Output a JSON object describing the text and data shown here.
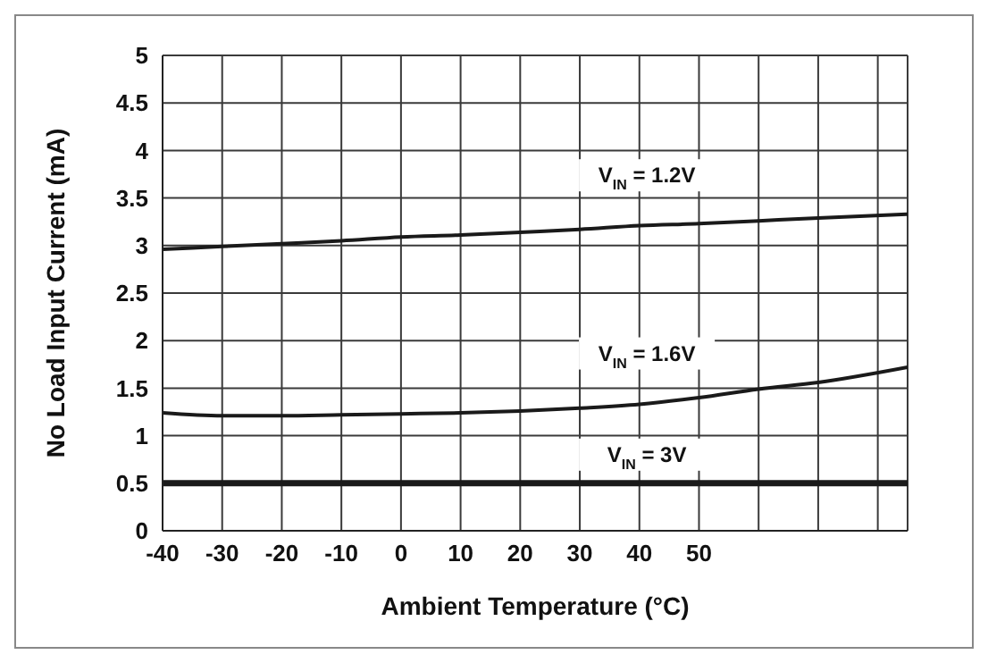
{
  "chart_data": {
    "type": "line",
    "xlabel": "Ambient Temperature (°C)",
    "ylabel": "No Load Input Current (mA)",
    "xlim": [
      -40,
      85
    ],
    "xticks": [
      -40,
      -30,
      -20,
      -10,
      0,
      10,
      20,
      30,
      40,
      50,
      {
        "value": 60,
        "label": null
      },
      {
        "value": 70,
        "label": null
      },
      {
        "value": 80,
        "label": null
      }
    ],
    "ylim": [
      0,
      5
    ],
    "yticks": [
      0,
      0.5,
      1,
      1.5,
      2,
      2.5,
      3,
      3.5,
      4,
      4.5,
      5
    ],
    "grid": true,
    "legend": false,
    "marker": "none",
    "series": [
      {
        "name": "V$_{IN}$ = 1.2V",
        "color": "#1a1a1a",
        "x": [
          -40,
          -30,
          -20,
          -10,
          0,
          10,
          20,
          30,
          40,
          50,
          60,
          70,
          85
        ],
        "values": [
          2.96,
          2.99,
          3.02,
          3.05,
          3.09,
          3.11,
          3.14,
          3.17,
          3.21,
          3.23,
          3.26,
          3.29,
          3.33
        ]
      },
      {
        "name": "V$_{IN}$ = 1.6V",
        "color": "#1a1a1a",
        "x": [
          -40,
          -30,
          -20,
          -10,
          0,
          10,
          20,
          30,
          40,
          50,
          60,
          70,
          85
        ],
        "values": [
          1.24,
          1.21,
          1.21,
          1.22,
          1.23,
          1.24,
          1.26,
          1.29,
          1.33,
          1.4,
          1.49,
          1.56,
          1.72
        ]
      },
      {
        "name": "V$_{IN}$ = 3V",
        "color": "#1a1a1a",
        "x": [
          -40,
          -20,
          0,
          20,
          40,
          60,
          85
        ],
        "values": [
          0.5,
          0.5,
          0.5,
          0.5,
          0.5,
          0.5,
          0.5
        ]
      }
    ]
  }
}
